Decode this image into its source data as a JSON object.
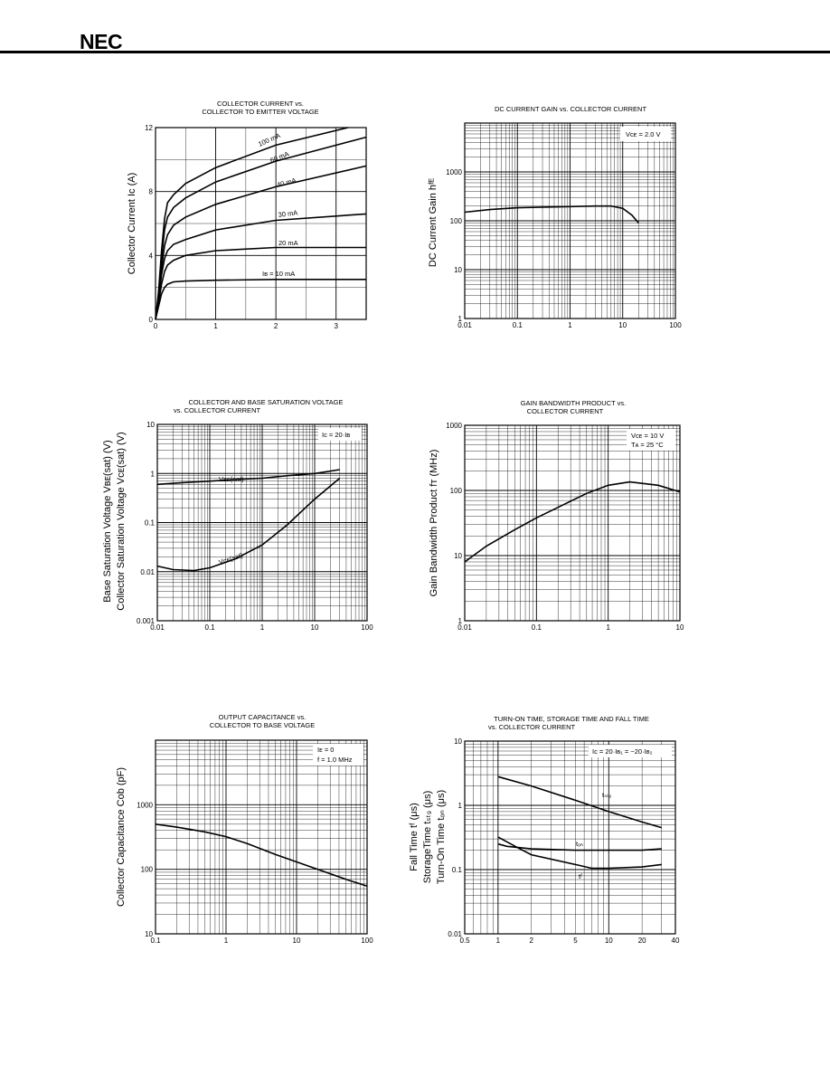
{
  "header": {
    "brand": "NEC"
  },
  "chart_data": [
    {
      "id": "c1",
      "type": "line",
      "title_lines": [
        "COLLECTOR CURRENT vs.",
        "COLLECTOR TO EMITTER VOLTAGE"
      ],
      "ylabel": "Collector Current  Ic  (A)",
      "xscale": "linear",
      "yscale": "linear",
      "xlim": [
        0,
        3.5
      ],
      "ylim": [
        0,
        12
      ],
      "xticks": [
        0,
        1,
        2,
        3
      ],
      "xtick_labels": [
        "0",
        "1",
        "2",
        "3"
      ],
      "yticks": [
        0,
        4,
        8,
        12
      ],
      "ytick_labels": [
        "0",
        "4",
        "8",
        "12"
      ],
      "grid": true,
      "series": [
        {
          "name": "Iʙ = 10 mA",
          "x": [
            0,
            0.05,
            0.1,
            0.15,
            0.2,
            0.3,
            0.5,
            1,
            2,
            3.5
          ],
          "y": [
            0,
            0.8,
            1.6,
            2.0,
            2.2,
            2.35,
            2.4,
            2.45,
            2.5,
            2.5
          ]
        },
        {
          "name": "20 mA",
          "x": [
            0,
            0.05,
            0.1,
            0.15,
            0.2,
            0.3,
            0.5,
            1,
            2,
            3.5
          ],
          "y": [
            0,
            1.0,
            2.2,
            3.0,
            3.4,
            3.7,
            4.0,
            4.3,
            4.5,
            4.5
          ]
        },
        {
          "name": "30 mA",
          "x": [
            0,
            0.05,
            0.1,
            0.15,
            0.2,
            0.3,
            0.5,
            1,
            2,
            3.5
          ],
          "y": [
            0,
            1.2,
            2.8,
            3.8,
            4.3,
            4.7,
            5.0,
            5.6,
            6.2,
            6.6
          ]
        },
        {
          "name": "40 mA",
          "x": [
            0,
            0.05,
            0.1,
            0.15,
            0.2,
            0.3,
            0.5,
            1,
            2,
            3.5
          ],
          "y": [
            0,
            1.3,
            3.2,
            4.6,
            5.3,
            5.9,
            6.4,
            7.2,
            8.3,
            9.6
          ]
        },
        {
          "name": "60 mA",
          "x": [
            0,
            0.05,
            0.1,
            0.15,
            0.2,
            0.3,
            0.5,
            1,
            2,
            3.5
          ],
          "y": [
            0,
            1.5,
            3.8,
            5.6,
            6.4,
            7.0,
            7.6,
            8.6,
            9.9,
            11.4
          ]
        },
        {
          "name": "100 mA",
          "x": [
            0,
            0.05,
            0.1,
            0.15,
            0.2,
            0.3,
            0.5,
            1,
            2,
            3.2
          ],
          "y": [
            0,
            1.7,
            4.3,
            6.3,
            7.3,
            7.8,
            8.5,
            9.5,
            10.9,
            12
          ]
        }
      ],
      "annotations": [
        "100 mA",
        "60 mA",
        "40 mA",
        "30 mA",
        "20 mA",
        "Iʙ = 10 mA"
      ]
    },
    {
      "id": "c2",
      "type": "line",
      "title_lines": [
        "DC CURRENT GAIN vs. COLLECTOR CURRENT"
      ],
      "ylabel": "DC Current Gain  hᶠᴱ",
      "xscale": "log",
      "yscale": "log",
      "xlim": [
        0.01,
        100
      ],
      "ylim": [
        1,
        10000
      ],
      "xticks": [
        0.01,
        0.1,
        1,
        10,
        100
      ],
      "xtick_labels": [
        "0.01",
        "0.1",
        "1",
        "10",
        "100"
      ],
      "yticks": [
        1,
        10,
        100,
        1000
      ],
      "ytick_labels": [
        "1",
        "10",
        "100",
        "1000"
      ],
      "grid": true,
      "series": [
        {
          "name": "",
          "x": [
            0.01,
            0.03,
            0.1,
            0.3,
            1,
            3,
            6,
            10,
            15,
            20
          ],
          "y": [
            150,
            170,
            185,
            190,
            195,
            200,
            200,
            180,
            130,
            90
          ]
        }
      ],
      "annotations": [
        "Vᴄᴇ = 2.0  V"
      ]
    },
    {
      "id": "c3",
      "type": "line",
      "title_lines": [
        "COLLECTOR AND BASE SATURATION VOLTAGE",
        "vs. COLLECTOR CURRENT"
      ],
      "ylabel_lines": [
        "Base Saturation Voltage  Vʙᴇ(sat)  (V)",
        "Collector Saturation Voltage Vᴄᴇ(sat)  (V)"
      ],
      "xscale": "log",
      "yscale": "log",
      "xlim": [
        0.01,
        100
      ],
      "ylim": [
        0.001,
        10
      ],
      "xticks": [
        0.01,
        0.1,
        1,
        10,
        100
      ],
      "xtick_labels": [
        "0.01",
        "0.1",
        "1",
        "10",
        "100"
      ],
      "yticks": [
        0.001,
        0.01,
        0.1,
        1,
        10
      ],
      "ytick_labels": [
        "0.001",
        "0.01",
        "0.1",
        "1",
        "10"
      ],
      "grid": true,
      "series": [
        {
          "name": "Vʙᴇ(sat)",
          "x": [
            0.01,
            0.03,
            0.1,
            0.3,
            1,
            3,
            10,
            30
          ],
          "y": [
            0.6,
            0.65,
            0.7,
            0.75,
            0.8,
            0.9,
            1.0,
            1.2
          ]
        },
        {
          "name": "Vᴄᴇ(sat)",
          "x": [
            0.01,
            0.02,
            0.05,
            0.1,
            0.3,
            1,
            3,
            10,
            30
          ],
          "y": [
            0.013,
            0.011,
            0.0105,
            0.012,
            0.018,
            0.035,
            0.09,
            0.3,
            0.8
          ]
        }
      ],
      "annotations": [
        "Ic = 20·Iʙ",
        "Vʙᴇ(sat)",
        "Vᴄᴇ(sat)"
      ]
    },
    {
      "id": "c4",
      "type": "line",
      "title_lines": [
        "GAIN BANDWIDTH PRODUCT vs.",
        "COLLECTOR CURRENT"
      ],
      "ylabel": "Gain Bandwidth Product  fᴛ  (MHz)",
      "xscale": "log",
      "yscale": "log",
      "xlim": [
        0.01,
        10
      ],
      "ylim": [
        1,
        1000
      ],
      "xticks": [
        0.01,
        0.1,
        1,
        10
      ],
      "xtick_labels": [
        "0.01",
        "0.1",
        "1",
        "10"
      ],
      "yticks": [
        1,
        10,
        100,
        1000
      ],
      "ytick_labels": [
        "1",
        "10",
        "100",
        "1000"
      ],
      "grid": true,
      "series": [
        {
          "name": "",
          "x": [
            0.01,
            0.02,
            0.05,
            0.1,
            0.2,
            0.5,
            1,
            2,
            5,
            10
          ],
          "y": [
            8,
            14,
            25,
            38,
            55,
            90,
            120,
            135,
            120,
            95
          ]
        }
      ],
      "annotations": [
        "Vᴄᴇ = 10  V",
        "Tᴀ = 25 °C"
      ]
    },
    {
      "id": "c5",
      "type": "line",
      "title_lines": [
        "OUTPUT CAPACITANCE vs.",
        "COLLECTOR TO BASE VOLTAGE"
      ],
      "ylabel": "Collector Capacitance  Cob  (pF)",
      "xscale": "log",
      "yscale": "log",
      "xlim": [
        0.1,
        100
      ],
      "ylim": [
        10,
        10000
      ],
      "xticks": [
        0.1,
        1,
        10,
        100
      ],
      "xtick_labels": [
        "0.1",
        "1",
        "10",
        "100"
      ],
      "yticks": [
        10,
        100,
        1000
      ],
      "ytick_labels": [
        "10",
        "100",
        "1000"
      ],
      "grid": true,
      "series": [
        {
          "name": "",
          "x": [
            0.1,
            0.2,
            0.5,
            1,
            2,
            5,
            10,
            20,
            50,
            100
          ],
          "y": [
            500,
            450,
            380,
            320,
            250,
            170,
            130,
            100,
            70,
            55
          ]
        }
      ],
      "annotations": [
        "Iᴇ = 0",
        "f = 1.0  MHz"
      ]
    },
    {
      "id": "c6",
      "type": "line",
      "title_lines": [
        "TURN-ON TIME, STORAGE TIME AND FALL TIME",
        "vs. COLLECTOR CURRENT"
      ],
      "ylabel_lines": [
        "Fall Time  tᶠ  (μs)",
        "StorageTime  tₛₜ₉  (μs)",
        "Turn-On Time  tₒₙ  (μs)"
      ],
      "xscale": "log",
      "yscale": "log",
      "xlim": [
        0.5,
        40
      ],
      "ylim": [
        0.01,
        10
      ],
      "xticks": [
        0.5,
        1,
        2,
        5,
        10,
        20,
        40
      ],
      "xtick_labels": [
        "0.5",
        "1",
        "2",
        "5",
        "10",
        "20",
        "40"
      ],
      "yticks": [
        0.01,
        0.1,
        1,
        10
      ],
      "ytick_labels": [
        "0.01",
        "0.1",
        "1",
        "10"
      ],
      "grid": true,
      "series": [
        {
          "name": "tₛₜ₉",
          "x": [
            1,
            2,
            5,
            10,
            20,
            30
          ],
          "y": [
            2.8,
            2.0,
            1.2,
            0.8,
            0.55,
            0.45
          ]
        },
        {
          "name": "tₒₙ",
          "x": [
            1,
            1.2,
            2,
            5,
            10,
            20,
            30
          ],
          "y": [
            0.25,
            0.23,
            0.21,
            0.2,
            0.2,
            0.2,
            0.21
          ]
        },
        {
          "name": "tᶠ",
          "x": [
            1,
            1.5,
            2,
            5,
            7,
            10,
            20,
            30
          ],
          "y": [
            0.32,
            0.22,
            0.17,
            0.12,
            0.105,
            0.105,
            0.11,
            0.12
          ]
        }
      ],
      "annotations": [
        "Ic = 20·Iʙ₁ = −20·Iʙ₂",
        "tₛₜ₉",
        "tₒₙ",
        "tᶠ"
      ]
    }
  ]
}
